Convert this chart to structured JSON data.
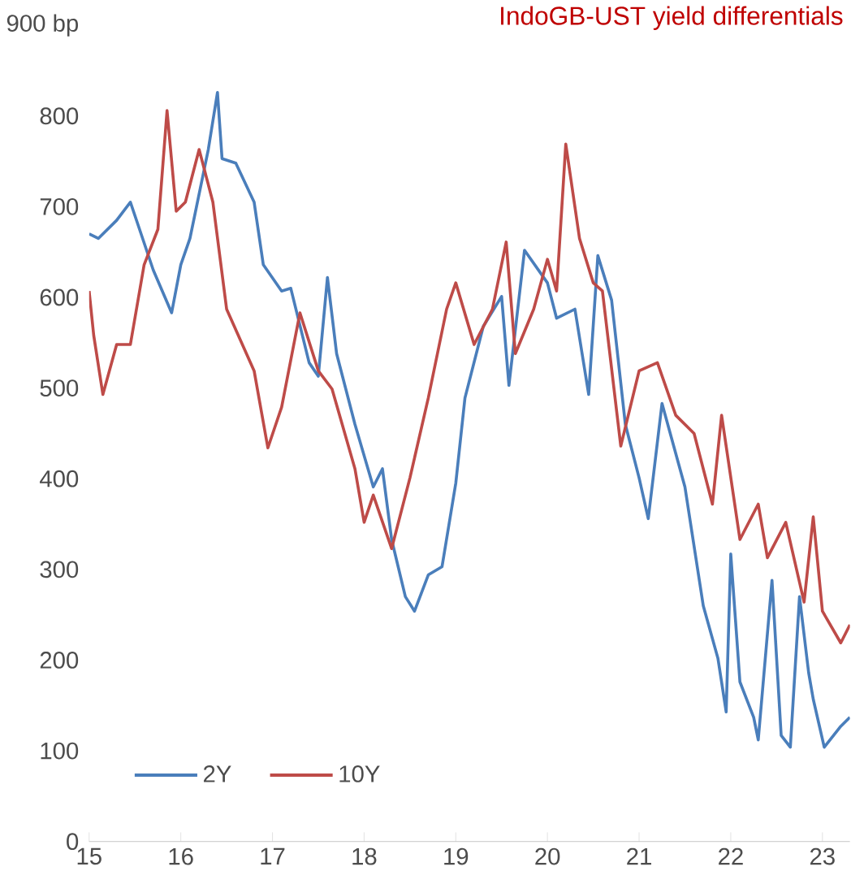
{
  "chart_data": {
    "type": "line",
    "title": "IndoGB-UST yield differentials",
    "xlim": [
      15,
      23.3
    ],
    "xticks": [
      15,
      16,
      17,
      18,
      19,
      20,
      21,
      22,
      23
    ],
    "ylim": [
      0,
      900
    ],
    "yticks": [
      0,
      100,
      200,
      300,
      400,
      500,
      600,
      700,
      800,
      {
        "value": 900,
        "label": "900 bp"
      }
    ],
    "legend": "bottom left",
    "grid": false,
    "series": [
      {
        "name": "2Y",
        "color": "#4a7ebb",
        "x": [
          15.0,
          15.1,
          15.3,
          15.45,
          15.55,
          15.7,
          15.9,
          16.0,
          16.1,
          16.3,
          16.4,
          16.45,
          16.6,
          16.8,
          16.9,
          17.1,
          17.2,
          17.4,
          17.5,
          17.6,
          17.7,
          17.9,
          18.1,
          18.2,
          18.3,
          18.45,
          18.55,
          18.7,
          18.85,
          19.0,
          19.1,
          19.3,
          19.5,
          19.58,
          19.75,
          20.0,
          20.1,
          20.3,
          20.45,
          20.55,
          20.7,
          20.85,
          21.0,
          21.1,
          21.25,
          21.5,
          21.7,
          21.86,
          21.95,
          22.0,
          22.1,
          22.25,
          22.3,
          22.45,
          22.55,
          22.65,
          22.75,
          22.85,
          22.9,
          23.02,
          23.2,
          23.3
        ],
        "values": [
          670,
          665,
          685,
          705,
          675,
          630,
          583,
          636,
          665,
          763,
          826,
          753,
          748,
          705,
          636,
          607,
          610,
          528,
          513,
          622,
          538,
          460,
          391,
          411,
          333,
          270,
          254,
          294,
          303,
          395,
          489,
          568,
          601,
          503,
          652,
          616,
          577,
          587,
          493,
          646,
          597,
          460,
          401,
          356,
          483,
          391,
          260,
          202,
          143,
          317,
          176,
          137,
          112,
          288,
          117,
          104,
          270,
          186,
          157,
          104,
          127,
          137
        ]
      },
      {
        "name": "10Y",
        "color": "#be4b48",
        "x": [
          15.0,
          15.05,
          15.15,
          15.3,
          15.45,
          15.6,
          15.75,
          15.85,
          15.95,
          16.05,
          16.2,
          16.35,
          16.5,
          16.8,
          16.95,
          17.1,
          17.3,
          17.5,
          17.65,
          17.9,
          18.0,
          18.1,
          18.3,
          18.5,
          18.7,
          18.9,
          19.0,
          19.2,
          19.4,
          19.55,
          19.65,
          19.85,
          20.0,
          20.1,
          20.2,
          20.35,
          20.5,
          20.6,
          20.8,
          21.0,
          21.2,
          21.4,
          21.6,
          21.8,
          21.9,
          22.1,
          22.3,
          22.4,
          22.6,
          22.8,
          22.9,
          23.0,
          23.2,
          23.3
        ],
        "values": [
          607,
          558,
          493,
          548,
          548,
          636,
          675,
          806,
          695,
          705,
          763,
          705,
          587,
          519,
          434,
          479,
          583,
          519,
          499,
          411,
          352,
          382,
          323,
          401,
          489,
          587,
          616,
          548,
          587,
          661,
          538,
          587,
          642,
          607,
          769,
          665,
          616,
          607,
          436,
          519,
          528,
          470,
          450,
          372,
          470,
          333,
          372,
          313,
          352,
          264,
          358,
          254,
          219,
          239
        ]
      }
    ]
  }
}
